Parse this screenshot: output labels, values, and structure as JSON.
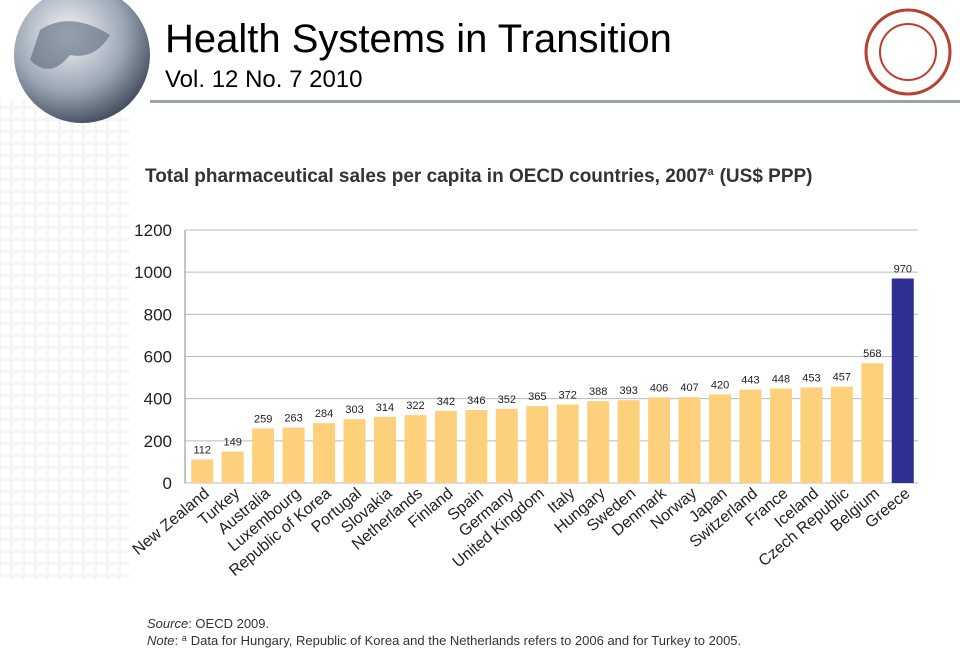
{
  "header": {
    "title": "Health Systems in Transition",
    "subtitle": "Vol. 12 No. 7 2010"
  },
  "chart_data": {
    "type": "bar",
    "title": "Total pharmaceutical sales per capita in OECD countries, 2007",
    "title_superscript": "a",
    "title_unit": "(US$ PPP)",
    "categories": [
      "New Zealand",
      "Turkey",
      "Australia",
      "Luxembourg",
      "Republic of Korea",
      "Portugal",
      "Slovakia",
      "Netherlands",
      "Finland",
      "Spain",
      "Germany",
      "United Kingdom",
      "Italy",
      "Hungary",
      "Sweden",
      "Denmark",
      "Norway",
      "Japan",
      "Switzerland",
      "France",
      "Iceland",
      "Czech Republic",
      "Belgium",
      "Greece"
    ],
    "values": [
      112,
      149,
      259,
      263,
      284,
      303,
      314,
      322,
      342,
      346,
      352,
      365,
      372,
      388,
      393,
      406,
      407,
      420,
      443,
      448,
      453,
      457,
      568,
      970
    ],
    "colors": [
      "#fdd17c",
      "#fdd17c",
      "#fdd17c",
      "#fdd17c",
      "#fdd17c",
      "#fdd17c",
      "#fdd17c",
      "#fdd17c",
      "#fdd17c",
      "#fdd17c",
      "#fdd17c",
      "#fdd17c",
      "#fdd17c",
      "#fdd17c",
      "#fdd17c",
      "#fdd17c",
      "#fdd17c",
      "#fdd17c",
      "#fdd17c",
      "#fdd17c",
      "#fdd17c",
      "#fdd17c",
      "#fdd17c",
      "#2e3192"
    ],
    "ylim": [
      0,
      1200
    ],
    "yticks": [
      0,
      200,
      400,
      600,
      800,
      1000,
      1200
    ],
    "grid": true
  },
  "footer": {
    "source_label": "Source",
    "source_text": ": OECD 2009.",
    "note_label": "Note",
    "note_marker": "a",
    "note_text": "Data for Hungary, Republic of Korea and the Netherlands refers to 2006 and for Turkey to 2005."
  }
}
